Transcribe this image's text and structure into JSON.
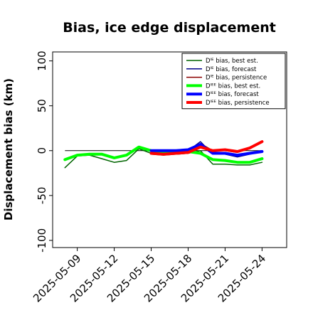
{
  "chart_data": {
    "type": "line",
    "title": "Bias, ice edge displacement",
    "ylabel": "Displacement bias (km)",
    "xlabel": "",
    "ylim": [
      -108,
      110
    ],
    "yticks": [
      -100,
      -50,
      0,
      50,
      100
    ],
    "xlim": [
      "2025-05-07",
      "2025-05-26"
    ],
    "xticks": [
      "2025-05-09",
      "2025-05-12",
      "2025-05-15",
      "2025-05-18",
      "2025-05-21",
      "2025-05-24"
    ],
    "highlight_tick": "2025-05-15",
    "highlight_color": "#228b22",
    "grid": false,
    "legend_position": "top-right",
    "zero_line": {
      "value": 0,
      "color": "#000000"
    },
    "series": [
      {
        "name": "Dᴵᴱ bias, best est.",
        "color": "#006400",
        "width": 1.5,
        "x": [
          "2025-05-08",
          "2025-05-09",
          "2025-05-10",
          "2025-05-11",
          "2025-05-12",
          "2025-05-13",
          "2025-05-14",
          "2025-05-15",
          "2025-05-16",
          "2025-05-17",
          "2025-05-18",
          "2025-05-19",
          "2025-05-20",
          "2025-05-21",
          "2025-05-22",
          "2025-05-23",
          "2025-05-24"
        ],
        "values": [
          -19,
          -6,
          -5,
          -9,
          -13,
          -11,
          2,
          -3,
          -4,
          -4,
          -3,
          0,
          -15,
          -15,
          -16,
          -16,
          -13
        ]
      },
      {
        "name": "Dᴵᴱ bias, forecast",
        "color": "#00008b",
        "width": 1.5,
        "x": [
          "2025-05-15",
          "2025-05-16",
          "2025-05-17",
          "2025-05-18",
          "2025-05-19",
          "2025-05-20",
          "2025-05-21",
          "2025-05-22",
          "2025-05-23",
          "2025-05-24"
        ],
        "values": [
          0,
          -1,
          -1,
          0,
          10,
          -4,
          -4,
          -7,
          -4,
          -1
        ]
      },
      {
        "name": "Dᴵᴱ bias, persistence",
        "color": "#8b0000",
        "width": 1.5,
        "x": [
          "2025-05-15",
          "2025-05-16",
          "2025-05-17",
          "2025-05-18",
          "2025-05-19",
          "2025-05-20",
          "2025-05-21",
          "2025-05-22",
          "2025-05-23",
          "2025-05-24"
        ],
        "values": [
          -4,
          -5,
          -4,
          -3,
          8,
          0,
          0,
          -2,
          2,
          10
        ]
      },
      {
        "name": "Dᴵᴱᴱ bias, best est.",
        "color": "#00ff00",
        "width": 4,
        "x": [
          "2025-05-08",
          "2025-05-09",
          "2025-05-10",
          "2025-05-11",
          "2025-05-12",
          "2025-05-13",
          "2025-05-14",
          "2025-05-15",
          "2025-05-16",
          "2025-05-17",
          "2025-05-18",
          "2025-05-19",
          "2025-05-20",
          "2025-05-21",
          "2025-05-22",
          "2025-05-23",
          "2025-05-24"
        ],
        "values": [
          -10,
          -5,
          -4,
          -4,
          -8,
          -5,
          4,
          0,
          -2,
          -2,
          -1,
          -3,
          -10,
          -11,
          -13,
          -13,
          -9
        ]
      },
      {
        "name": "Dᴵᴱᴱ bias, forecast",
        "color": "#0000ff",
        "width": 4,
        "x": [
          "2025-05-15",
          "2025-05-16",
          "2025-05-17",
          "2025-05-18",
          "2025-05-19",
          "2025-05-20",
          "2025-05-21",
          "2025-05-22",
          "2025-05-23",
          "2025-05-24"
        ],
        "values": [
          0,
          0,
          0,
          1,
          7,
          -3,
          -3,
          -5,
          -3,
          -1
        ]
      },
      {
        "name": "Dᴵᴱᴱ bias, persistence",
        "color": "#ff0000",
        "width": 4,
        "x": [
          "2025-05-15",
          "2025-05-16",
          "2025-05-17",
          "2025-05-18",
          "2025-05-19",
          "2025-05-20",
          "2025-05-21",
          "2025-05-22",
          "2025-05-23",
          "2025-05-24"
        ],
        "values": [
          -3,
          -4,
          -3,
          -2,
          4,
          0,
          1,
          -1,
          3,
          10
        ]
      }
    ]
  }
}
